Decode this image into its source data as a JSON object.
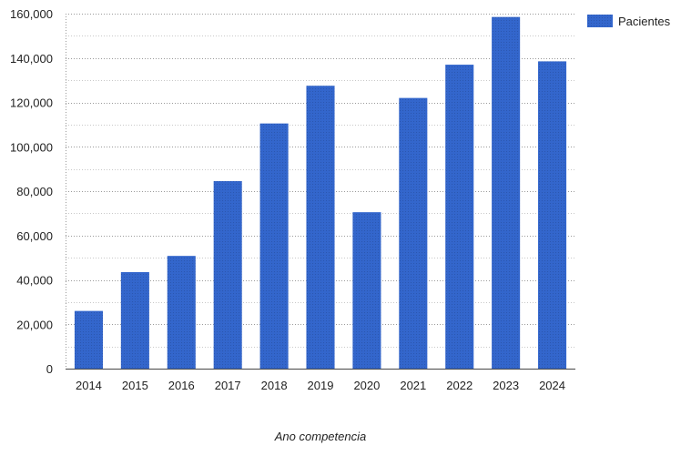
{
  "chart_data": {
    "type": "bar",
    "title": "",
    "xlabel": "Ano competencia",
    "ylabel": "",
    "ylim": [
      0,
      160000
    ],
    "yticks": [
      0,
      20000,
      40000,
      60000,
      80000,
      100000,
      120000,
      140000,
      160000
    ],
    "ytick_labels": [
      "0",
      "20,000",
      "40,000",
      "60,000",
      "80,000",
      "100,000",
      "120,000",
      "140,000",
      "160,000"
    ],
    "categories": [
      "2014",
      "2015",
      "2016",
      "2017",
      "2018",
      "2019",
      "2020",
      "2021",
      "2022",
      "2023",
      "2024"
    ],
    "series": [
      {
        "name": "Pacientes",
        "color": "#3366cc",
        "values": [
          26000,
          43500,
          50800,
          84500,
          110500,
          127500,
          70500,
          122000,
          137000,
          158500,
          138500
        ]
      }
    ],
    "legend_position": "top-right",
    "grid": "horizontal dotted"
  }
}
